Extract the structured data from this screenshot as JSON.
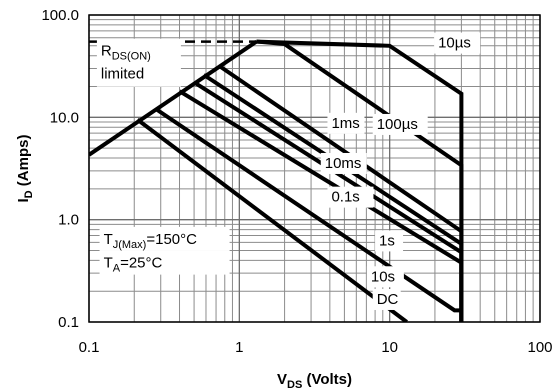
{
  "chart_data": {
    "type": "line",
    "x_scale": "log",
    "y_scale": "log",
    "xlim": [
      0.1,
      100
    ],
    "ylim": [
      0.1,
      100
    ],
    "grid": true,
    "xlabel": {
      "main": "V",
      "sub": "DS",
      "tail": " (Volts)"
    },
    "ylabel": {
      "main": "I",
      "sub": "D",
      "tail": " (Amps)"
    },
    "x_ticks": [
      {
        "value": 0.1,
        "label": "0.1"
      },
      {
        "value": 1,
        "label": "1"
      },
      {
        "value": 10,
        "label": "10"
      },
      {
        "value": 100,
        "label": "100"
      }
    ],
    "y_ticks": [
      {
        "value": 0.1,
        "label": "0.1"
      },
      {
        "value": 1,
        "label": "1.0"
      },
      {
        "value": 10,
        "label": "10.0"
      },
      {
        "value": 100,
        "label": "100.0"
      }
    ],
    "rds_on_limit": {
      "x": [
        0.1,
        1.3
      ],
      "y": [
        4.3,
        55
      ]
    },
    "dc_current_limit": {
      "x": [
        0.1,
        1.3
      ],
      "y": [
        55,
        55
      ]
    },
    "series": [
      {
        "name": "10µs",
        "x": [
          1.3,
          10,
          30,
          30
        ],
        "y": [
          55,
          50,
          17,
          0.1
        ]
      },
      {
        "name": "100µs",
        "x": [
          1.3,
          2,
          30,
          30
        ],
        "y": [
          55,
          52,
          3.4,
          0.1
        ]
      },
      {
        "name": "1ms",
        "x": [
          0.73,
          30,
          30
        ],
        "y": [
          32,
          0.77,
          0.1
        ]
      },
      {
        "name": "10ms",
        "x": [
          0.58,
          30,
          30
        ],
        "y": [
          26,
          0.58,
          0.1
        ]
      },
      {
        "name": "0.1s",
        "x": [
          0.5,
          30,
          30
        ],
        "y": [
          22,
          0.48,
          0.1
        ]
      },
      {
        "name": "1s",
        "x": [
          0.4,
          30,
          30
        ],
        "y": [
          18,
          0.38,
          0.1
        ]
      },
      {
        "name": "10s",
        "x": [
          0.28,
          27,
          30,
          30
        ],
        "y": [
          12,
          0.13,
          0.13,
          0.1
        ]
      },
      {
        "name": "DC",
        "x": [
          0.21,
          13
        ],
        "y": [
          9.5,
          0.1
        ]
      }
    ],
    "annotations": [
      {
        "id": "rds",
        "text": "R",
        "sub": "DS(ON)",
        "line2": "limited",
        "x": 0.12,
        "y": 40
      },
      {
        "id": "tj",
        "text": "T",
        "sub": "J(Max)",
        "tail": "=150°C",
        "x": 0.125,
        "y": 0.58
      },
      {
        "id": "ta",
        "text": "T",
        "sub": "A",
        "tail": "=25°C",
        "x": 0.125,
        "y": 0.34
      },
      {
        "id": "l10us",
        "text": "10µs",
        "x": 21,
        "y": 48
      },
      {
        "id": "l100us",
        "text": "100µs",
        "x": 8.2,
        "y": 7.7
      },
      {
        "id": "l1ms",
        "text": "1ms",
        "x": 4.1,
        "y": 7.9
      },
      {
        "id": "l10ms",
        "text": "10ms",
        "x": 3.7,
        "y": 3.2
      },
      {
        "id": "l01s",
        "text": "0.1s",
        "x": 4.1,
        "y": 1.5
      },
      {
        "id": "l1s",
        "text": "1s",
        "x": 8.5,
        "y": 0.56
      },
      {
        "id": "l10s",
        "text": "10s",
        "x": 7.5,
        "y": 0.25
      },
      {
        "id": "ldc",
        "text": "DC",
        "x": 8.2,
        "y": 0.15
      }
    ]
  }
}
